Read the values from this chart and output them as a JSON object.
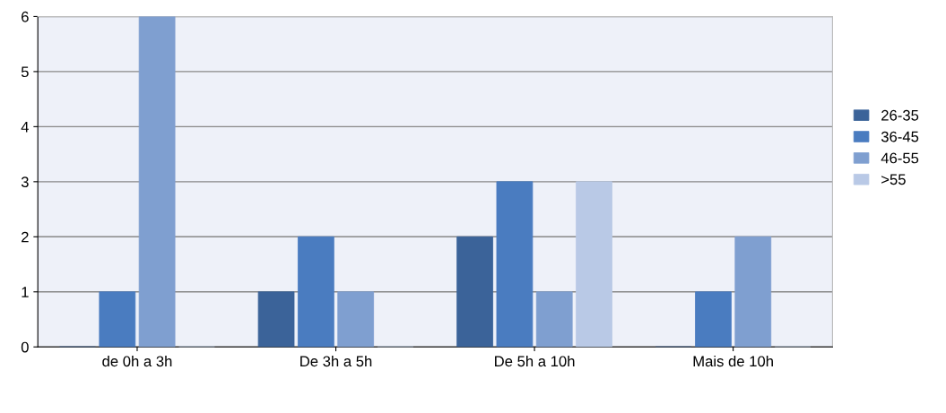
{
  "chart_data": {
    "type": "bar",
    "categories": [
      "de 0h a 3h",
      "De 3h a 5h",
      "De 5h a 10h",
      "Mais de 10h"
    ],
    "series": [
      {
        "name": "26-35",
        "color": "#3b6399",
        "values": [
          0,
          1,
          2,
          0
        ]
      },
      {
        "name": "36-45",
        "color": "#4a7cc0",
        "values": [
          1,
          2,
          3,
          1
        ]
      },
      {
        "name": "46-55",
        "color": "#7f9fd0",
        "values": [
          6,
          1,
          1,
          2
        ]
      },
      {
        "name": ">55",
        "color": "#b9c9e6",
        "values": [
          0,
          0,
          3,
          0
        ]
      }
    ],
    "ylim": [
      0,
      6
    ],
    "yticks": [
      0,
      1,
      2,
      3,
      4,
      5,
      6
    ],
    "grid": "y",
    "legend": "right"
  }
}
